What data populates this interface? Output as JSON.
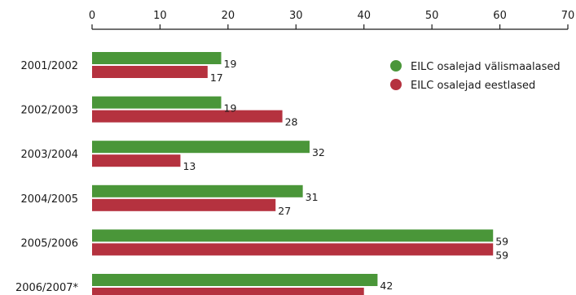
{
  "chart_data": {
    "type": "bar",
    "orientation": "horizontal",
    "categories": [
      "2001/2002",
      "2002/2003",
      "2003/2004",
      "2004/2005",
      "2005/2006",
      "2006/2007*"
    ],
    "series": [
      {
        "name": "EILC osalejad välismaalased",
        "color": "#4a9639",
        "values": [
          19,
          19,
          32,
          31,
          59,
          42
        ]
      },
      {
        "name": "EILC osalejad eestlased",
        "color": "#b5323f",
        "values": [
          17,
          28,
          13,
          27,
          59,
          40
        ]
      }
    ],
    "x_ticks": [
      0,
      10,
      20,
      30,
      40,
      50,
      60,
      70
    ],
    "xlim": [
      0,
      70
    ],
    "axis_position": "top",
    "grid": false,
    "legend_position": "top-right",
    "data_labels": true
  }
}
